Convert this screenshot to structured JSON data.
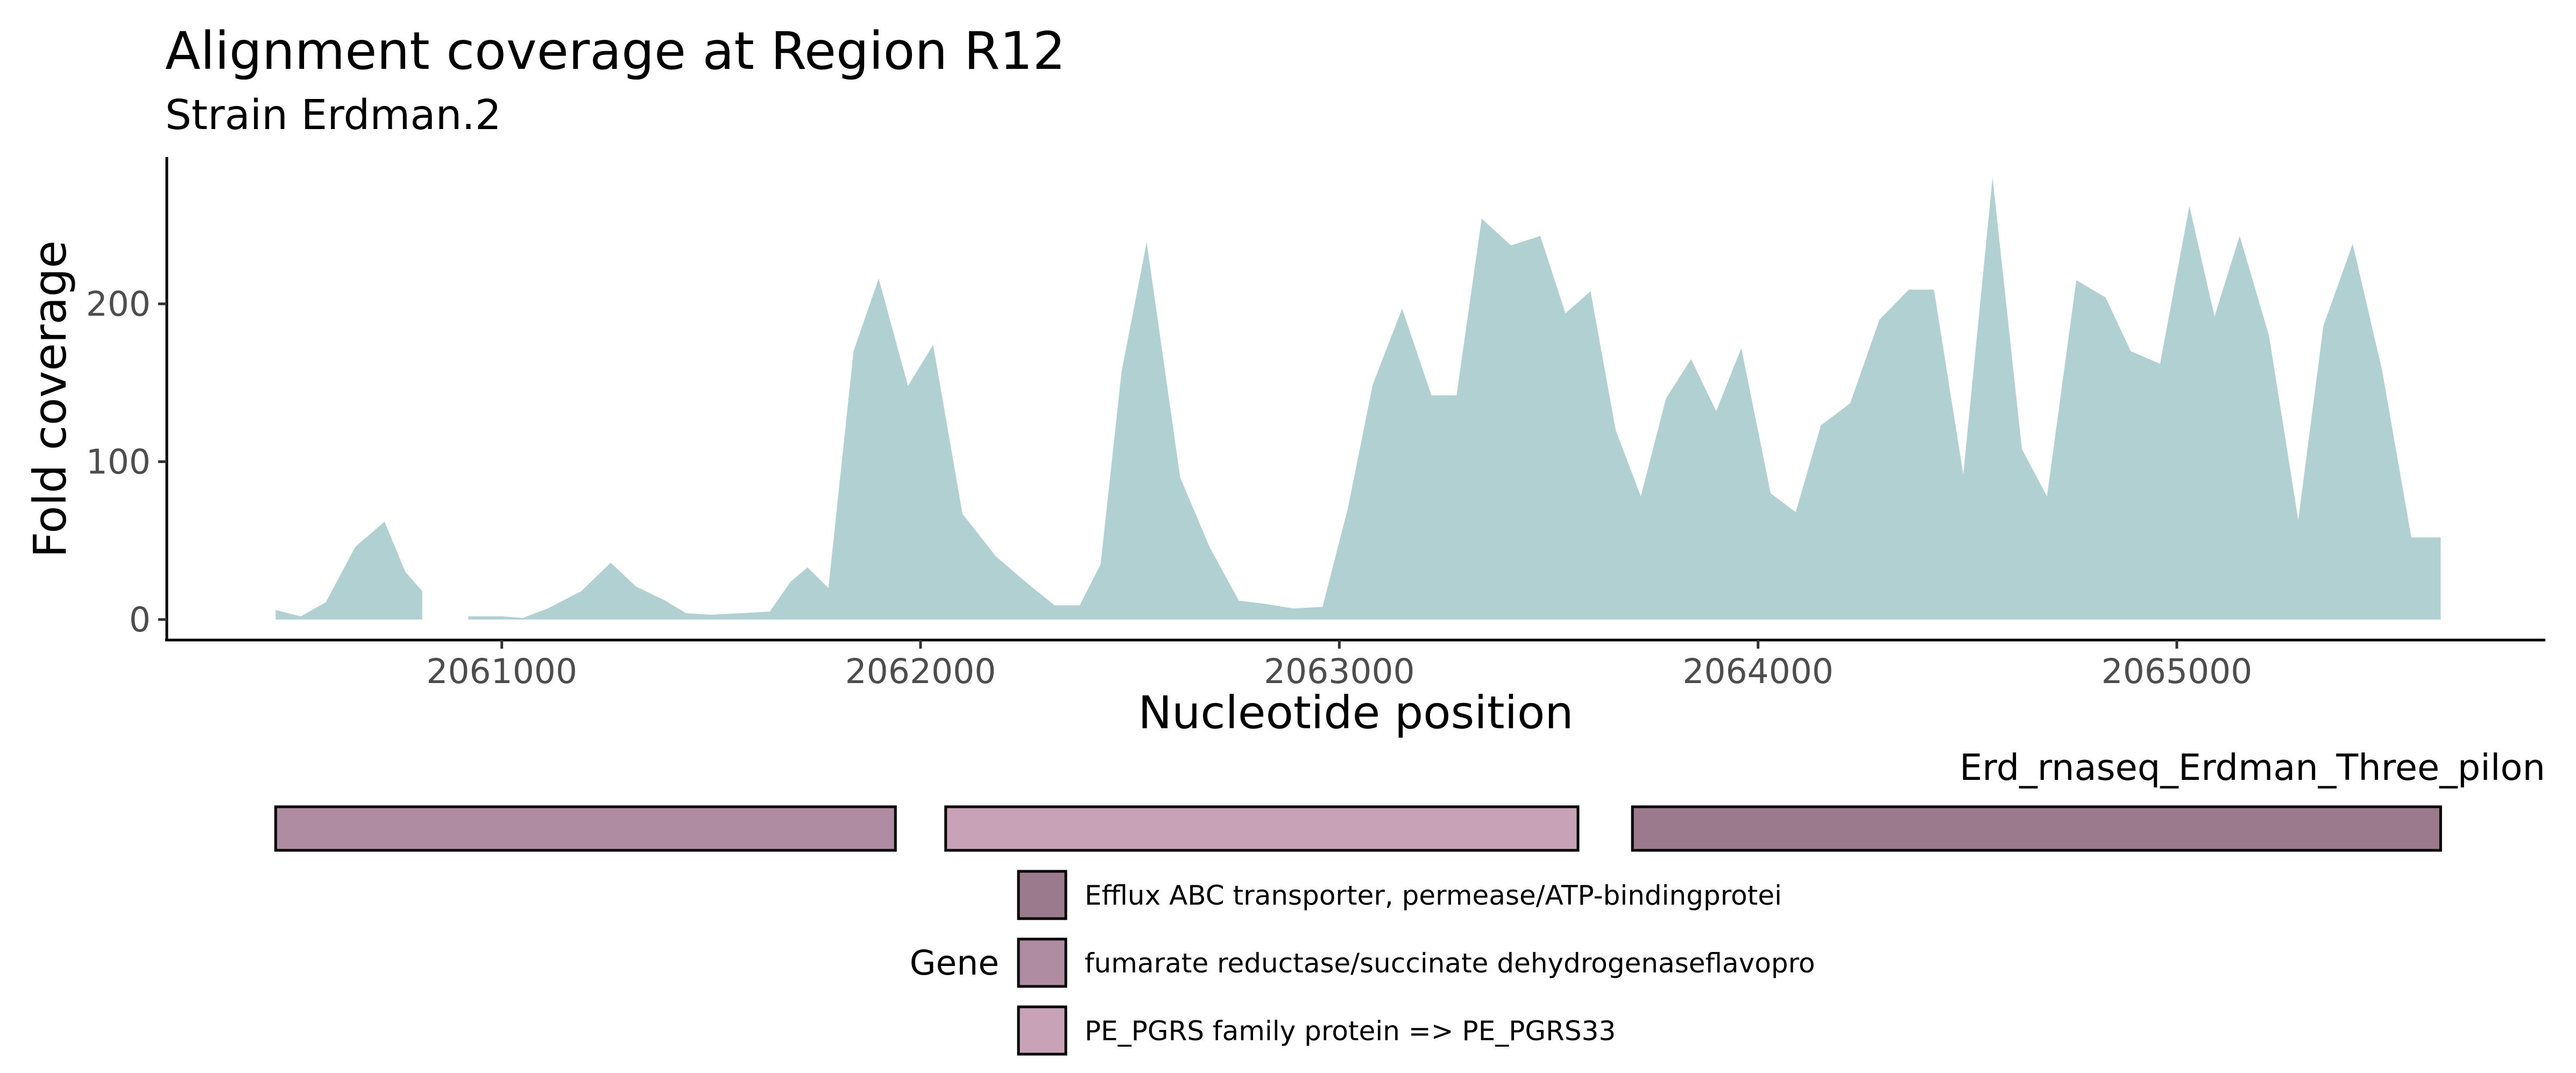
{
  "chart_data": {
    "type": "area",
    "title": "Alignment coverage at Region R12",
    "subtitle": "Strain Erdman.2",
    "xlabel": "Nucleotide position",
    "ylabel": "Fold coverage",
    "xlim": [
      2060200,
      2065880
    ],
    "ylim": [
      -13,
      293
    ],
    "xticks": [
      2061000,
      2062000,
      2063000,
      2064000,
      2065000
    ],
    "yticks": [
      0,
      100,
      200
    ],
    "grid": false,
    "fill_color": "#b0d0d2",
    "segments": [
      {
        "x": [
          2060460,
          2060520,
          2060580,
          2060650,
          2060720,
          2060770,
          2060810
        ],
        "y": [
          6,
          2,
          11,
          46,
          62,
          30,
          18
        ]
      },
      {
        "x": [
          2060920,
          2061000,
          2061050,
          2061110,
          2061190,
          2061260,
          2061320,
          2061390,
          2061440,
          2061500,
          2061570,
          2061640,
          2061690,
          2061730,
          2061780,
          2061840
        ],
        "y": [
          2,
          2,
          1,
          7,
          18,
          36,
          21,
          12,
          4,
          3,
          4,
          5,
          24,
          33,
          20,
          170
        ]
      },
      {
        "x": [
          2061840,
          2061900,
          2061970,
          2062030,
          2062100,
          2062180,
          2062250,
          2062320,
          2062380,
          2062430,
          2062480,
          2062540,
          2062620,
          2062690,
          2062760,
          2062820,
          2062890,
          2062960,
          2063020
        ],
        "y": [
          170,
          216,
          148,
          174,
          67,
          40,
          24,
          9,
          9,
          35,
          157,
          239,
          90,
          46,
          12,
          10,
          7,
          8,
          70
        ]
      },
      {
        "x": [
          2063020,
          2063080,
          2063150,
          2063220,
          2063280,
          2063340,
          2063410,
          2063480,
          2063540,
          2063600,
          2063660,
          2063720,
          2063780,
          2063840,
          2063900,
          2063960,
          2064030,
          2064090,
          2064150,
          2064220,
          2064290,
          2064360,
          2064420,
          2064490,
          2064560,
          2064630,
          2064690,
          2064760,
          2064830,
          2064890,
          2064960,
          2065030,
          2065090,
          2065150,
          2065220,
          2065290,
          2065350,
          2065420,
          2065490,
          2065560,
          2065630
        ],
        "y": [
          70,
          149,
          197,
          142,
          142,
          254,
          237,
          243,
          194,
          208,
          120,
          78,
          140,
          165,
          132,
          172,
          80,
          68,
          123,
          137,
          190,
          209,
          209,
          92,
          280,
          108,
          78,
          215,
          204,
          170,
          162,
          262,
          192,
          243,
          180,
          63,
          186,
          238,
          158,
          52,
          52
        ]
      }
    ]
  },
  "gene_track": {
    "label": "Erd_rnaseq_Erdman_Three_pilon",
    "genes": [
      {
        "start": 2060460,
        "end": 2061940,
        "gene": "fumarate reductase/succinate dehydrogenaseflavopro"
      },
      {
        "start": 2062060,
        "end": 2063570,
        "gene": "PE_PGRS family protein => PE_PGRS33"
      },
      {
        "start": 2063700,
        "end": 2065630,
        "gene": "Efflux ABC transporter, permease/ATP-bindingprotei"
      }
    ]
  },
  "legend": {
    "title": "Gene",
    "entries": [
      {
        "label": "Efflux ABC transporter, permease/ATP-bindingprotei",
        "color": "#9c7a8e"
      },
      {
        "label": "fumarate reductase/succinate dehydrogenaseflavopro",
        "color": "#b08ca2"
      },
      {
        "label": "PE_PGRS family protein => PE_PGRS33",
        "color": "#c8a2b6"
      }
    ]
  }
}
